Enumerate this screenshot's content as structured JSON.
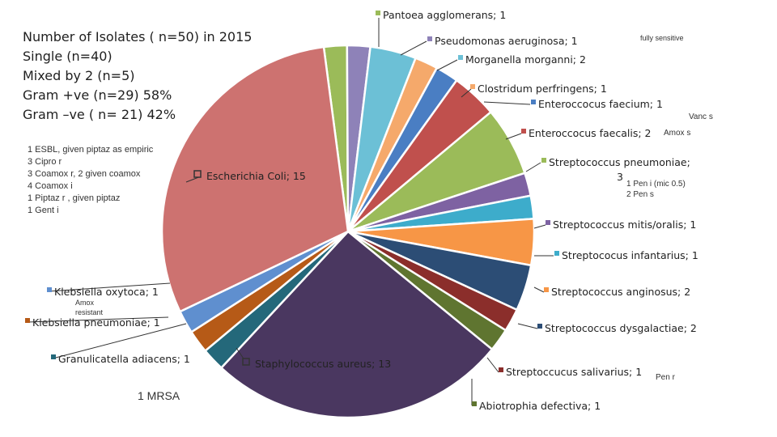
{
  "header": {
    "lines": [
      "Number of Isolates ( n=50) in 2015",
      "Single (n=40)",
      "Mixed by 2 (n=5)",
      "Gram +ve (n=29) 58%",
      "Gram –ve ( n= 21) 42%"
    ]
  },
  "esbl_note": {
    "lines": [
      "1 ESBL,  given piptaz as empiric",
      "3 Cipro r",
      "3 Coamox r, 2 given coamox",
      "4 Coamox i",
      "1 Piptaz r , given piptaz",
      "1 Gent i"
    ]
  },
  "notes": {
    "fully_sensitive": "fully sensitive",
    "vanc_s": "Vanc s",
    "amox_s": "Amox s",
    "pen_i": "1 Pen i (mic 0.5)",
    "pen_s": "2 Pen s",
    "amox_res_1": "Amox",
    "amox_res_2": "resistant",
    "mrsa": "1 MRSA",
    "pen_r": "Pen r"
  },
  "chart_data": {
    "type": "pie",
    "slices": [
      {
        "label": "Pantoea agglomerans; 1",
        "value": 1,
        "color": "#9bbb59"
      },
      {
        "label": "Pseudomonas aeruginosa; 1",
        "value": 1,
        "color": "#8e82b8"
      },
      {
        "label": "Morganella morganni; 2",
        "value": 2,
        "color": "#6cc0d6"
      },
      {
        "label": "Clostridum perfringens; 1",
        "value": 1,
        "color": "#f5a96b"
      },
      {
        "label": "Enteroccocus faecium; 1",
        "value": 1,
        "color": "#4a7ec3"
      },
      {
        "label": "Enteroccocus faecalis; 2",
        "value": 2,
        "color": "#c0504d"
      },
      {
        "label": "Streptococcus pneumoniae; 3",
        "value": 3,
        "color": "#9bbb59"
      },
      {
        "label": "Streptococcus mitis/oralis; 1",
        "value": 1,
        "color": "#7e62a2"
      },
      {
        "label": "Streptococus infantarius; 1",
        "value": 1,
        "color": "#3daccb"
      },
      {
        "label": "Streptococcus anginosus; 2",
        "value": 2,
        "color": "#f79646"
      },
      {
        "label": "Streptococcus dysgalactiae; 2",
        "value": 2,
        "color": "#2c4d75"
      },
      {
        "label": "Streptoccucus salivarius; 1",
        "value": 1,
        "color": "#8b2e2b"
      },
      {
        "label": "Abiotrophia defectiva; 1",
        "value": 1,
        "color": "#5f7530"
      },
      {
        "label": "Staphylococcus aureus; 13",
        "value": 13,
        "color": "#4a3760"
      },
      {
        "label": "Granulicatella adiacens; 1",
        "value": 1,
        "color": "#24687a"
      },
      {
        "label": "Klebsiella pneumoniae; 1",
        "value": 1,
        "color": "#b65a17"
      },
      {
        "label": "Klebsiella oxytoca; 1",
        "value": 1,
        "color": "#5f8fcf"
      },
      {
        "label": "Escherichia Coli; 15",
        "value": 15,
        "color": "#cd7270"
      }
    ]
  }
}
